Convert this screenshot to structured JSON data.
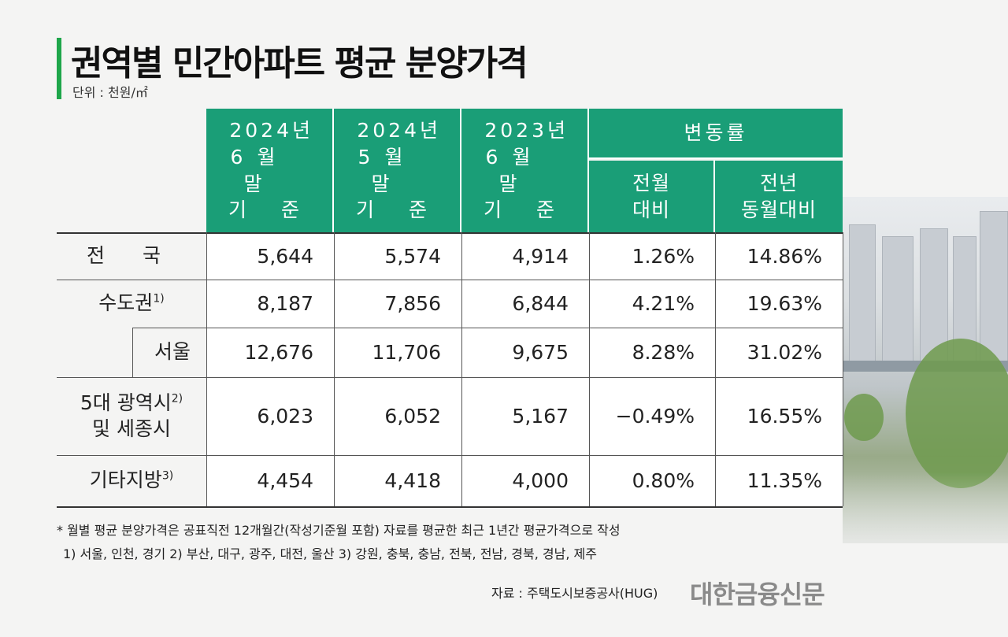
{
  "header": {
    "title": "권역별 민간아파트 평균 분양가격",
    "unit": "단위 : 천원/㎡"
  },
  "colors": {
    "header_bg": "#1a9e77",
    "accent_bar": "#1ea64a"
  },
  "table": {
    "column_lines": [
      [
        "2024년",
        "6월 말",
        "기 준"
      ],
      [
        "2024년",
        "5월 말",
        "기 준"
      ],
      [
        "2023년",
        "6월 말",
        "기 준"
      ]
    ],
    "change_group": "변동률",
    "change_cols": [
      [
        "전월",
        "대비"
      ],
      [
        "전년",
        "동월대비"
      ]
    ],
    "rows": [
      {
        "label": "전 국",
        "sup": "",
        "values": [
          "5,644",
          "5,574",
          "4,914",
          "1.26%",
          "14.86%"
        ]
      },
      {
        "label": "수도권",
        "sup": "1)",
        "values": [
          "8,187",
          "7,856",
          "6,844",
          "4.21%",
          "19.63%"
        ]
      },
      {
        "label": "서울",
        "sup": "",
        "values": [
          "12,676",
          "11,706",
          "9,675",
          "8.28%",
          "31.02%"
        ]
      },
      {
        "label": "5대 광역시",
        "label2": "및 세종시",
        "sup": "2)",
        "values": [
          "6,023",
          "6,052",
          "5,167",
          "−0.49%",
          "16.55%"
        ]
      },
      {
        "label": "기타지방",
        "sup": "3)",
        "values": [
          "4,454",
          "4,418",
          "4,000",
          "0.80%",
          "11.35%"
        ]
      }
    ]
  },
  "notes": {
    "line1": "* 월별 평균 분양가격은 공표직전 12개월간(작성기준월 포함) 자료를 평균한 최근 1년간 평균가격으로 작성",
    "line2": "1) 서울, 인천, 경기   2) 부산, 대구, 광주, 대전, 울산   3) 강원, 충북, 충남, 전북, 전남, 경북, 경남, 제주"
  },
  "source": "자료 : 주택도시보증공사(HUG)",
  "logo": "대한금융신문"
}
